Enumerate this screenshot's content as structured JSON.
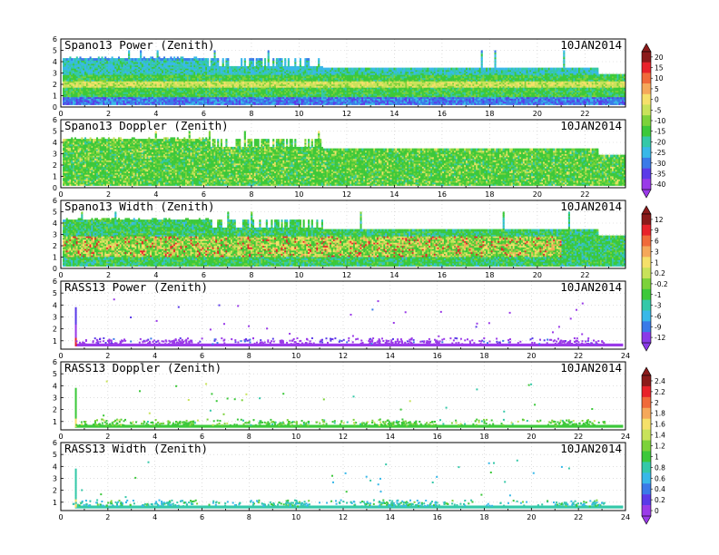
{
  "chart_data": [
    {
      "type": "heatmap",
      "title": "Spano13 Power (Zenith)",
      "date": "10JAN2014",
      "x_ticks": [
        "0",
        "2",
        "4",
        "6",
        "8",
        "10",
        "12",
        "14",
        "16",
        "18",
        "20",
        "22"
      ],
      "y_ticks": [
        "0",
        "1",
        "2",
        "3",
        "4",
        "5",
        "6"
      ],
      "xlim": [
        0,
        23.7
      ],
      "ylim": [
        0,
        6
      ],
      "colorbar": [
        "20",
        "15",
        "10",
        "5",
        "0",
        "-5",
        "-10",
        "-15",
        "-20",
        "-25",
        "-30",
        "-35",
        "-40"
      ],
      "colorbar_group": "power",
      "dominant_band_height": 2.0
    },
    {
      "type": "heatmap",
      "title": "Spano13 Doppler (Zenith)",
      "date": "10JAN2014",
      "x_ticks": [
        "0",
        "2",
        "4",
        "6",
        "8",
        "10",
        "12",
        "14",
        "16",
        "18",
        "20",
        "22"
      ],
      "y_ticks": [
        "0",
        "1",
        "2",
        "3",
        "4",
        "5",
        "6"
      ],
      "xlim": [
        0,
        23.7
      ],
      "ylim": [
        0,
        6
      ]
    },
    {
      "type": "heatmap",
      "title": "Spano13 Width (Zenith)",
      "date": "10JAN2014",
      "x_ticks": [
        "0",
        "2",
        "4",
        "6",
        "8",
        "10",
        "12",
        "14",
        "16",
        "18",
        "20",
        "22"
      ],
      "y_ticks": [
        "0",
        "1",
        "2",
        "3",
        "4",
        "5",
        "6"
      ],
      "xlim": [
        0,
        23.7
      ],
      "ylim": [
        0,
        6
      ],
      "colorbar": [
        "12",
        "9",
        "6",
        "3",
        "1",
        "0.2",
        "-0.2",
        "-1",
        "-3",
        "-6",
        "-9",
        "-12"
      ],
      "colorbar_group": "doppler"
    },
    {
      "type": "heatmap",
      "title": "RASS13 Power (Zenith)",
      "date": "10JAN2014",
      "x_ticks": [
        "0",
        "2",
        "4",
        "6",
        "8",
        "10",
        "12",
        "14",
        "16",
        "18",
        "20",
        "22",
        "24"
      ],
      "y_ticks": [
        "1",
        "2",
        "3",
        "4",
        "5",
        "6"
      ],
      "xlim": [
        0,
        24
      ],
      "ylim": [
        0.3,
        6
      ],
      "band_height": 0.65
    },
    {
      "type": "heatmap",
      "title": "RASS13 Doppler (Zenith)",
      "date": "10JAN2014",
      "x_ticks": [
        "0",
        "2",
        "4",
        "6",
        "8",
        "10",
        "12",
        "14",
        "16",
        "18",
        "20",
        "22",
        "24"
      ],
      "y_ticks": [
        "1",
        "2",
        "3",
        "4",
        "5",
        "6"
      ],
      "xlim": [
        0,
        24
      ],
      "ylim": [
        0.3,
        6
      ],
      "colorbar": [
        "2.4",
        "2.2",
        "2",
        "1.8",
        "1.6",
        "1.4",
        "1.2",
        "1",
        "0.8",
        "0.6",
        "0.4",
        "0.2",
        "0"
      ],
      "colorbar_group": "width",
      "band_height": 0.6
    },
    {
      "type": "heatmap",
      "title": "RASS13 Width (Zenith)",
      "date": "10JAN2014",
      "x_ticks": [
        "0",
        "2",
        "4",
        "6",
        "8",
        "10",
        "12",
        "14",
        "16",
        "18",
        "20",
        "22",
        "24"
      ],
      "y_ticks": [
        "1",
        "2",
        "3",
        "4",
        "5",
        "6"
      ],
      "xlim": [
        0,
        24
      ],
      "ylim": [
        0.3,
        6
      ],
      "band_height": 0.6
    }
  ],
  "colors": {
    "power_scale": [
      "#8b1a1a",
      "#e8222a",
      "#f06a3a",
      "#f5a85a",
      "#f5e06a",
      "#c8e25a",
      "#7cd23a",
      "#3cc83a",
      "#34c8a8",
      "#38b8e8",
      "#3a7ae8",
      "#5a3ae8",
      "#9a3ae8"
    ],
    "doppler_scale": [
      "#8b1a1a",
      "#e8222a",
      "#f06a3a",
      "#f5a85a",
      "#f5e06a",
      "#c8e25a",
      "#7cd23a",
      "#3cc83a",
      "#34c8a8",
      "#38b8e8",
      "#3a7ae8",
      "#8a3ae8"
    ],
    "width_scale": [
      "#8b1a1a",
      "#e8222a",
      "#f06a3a",
      "#f5a85a",
      "#f5e06a",
      "#c8e25a",
      "#7cd23a",
      "#3cc83a",
      "#34c8a8",
      "#38b8e8",
      "#3a7ae8",
      "#5a3ae8",
      "#9a3ae8"
    ]
  }
}
